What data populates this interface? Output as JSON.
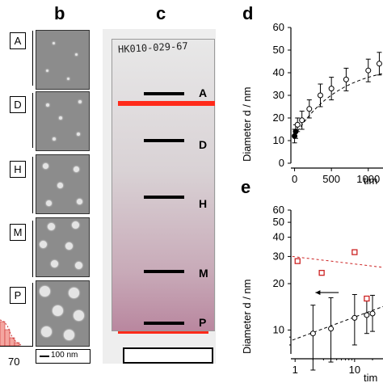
{
  "panel_labels": {
    "b": "b",
    "c": "c",
    "d": "d",
    "e": "e"
  },
  "samples": [
    "A",
    "D",
    "H",
    "M",
    "P"
  ],
  "left_axis_tick": "70",
  "scale_bar_label": "100 nm",
  "strip": {
    "handwriting": "HK010-029-67",
    "band_labels": [
      "A",
      "D",
      "H",
      "M",
      "P"
    ]
  },
  "colors": {
    "red_line": "#ff2a1a",
    "red_series": "#cc2222",
    "gradient_end": "#b07f96"
  },
  "chart_data": [
    {
      "type": "scatter",
      "panel": "d",
      "ylabel": "Diameter d / nm",
      "xlabel": "tim",
      "x_ticks": [
        "0",
        "500",
        "1000"
      ],
      "y_ticks": [
        "0",
        "10",
        "20",
        "30",
        "40",
        "50",
        "60"
      ],
      "xlim": [
        -50,
        1200
      ],
      "ylim": [
        0,
        60
      ],
      "series": [
        {
          "x": [
            0,
            15,
            40,
            100,
            200,
            350,
            500,
            700,
            1000,
            1150
          ],
          "y": [
            12,
            14,
            17,
            19,
            24,
            30,
            33,
            37,
            41,
            44
          ],
          "yerr": [
            3,
            3,
            3,
            4,
            4,
            5,
            5,
            5,
            5,
            5
          ]
        }
      ],
      "fit_line": true
    },
    {
      "type": "scatter",
      "panel": "e",
      "ylabel": "Diameter d / nm",
      "xlabel": "tim",
      "x_ticks": [
        "1",
        "10"
      ],
      "y_ticks": [
        "10",
        "20",
        "30",
        "40",
        "50",
        "60"
      ],
      "xscale": "log",
      "yscale": "log",
      "series": [
        {
          "x": [
            2,
            4,
            10,
            16,
            20
          ],
          "y": [
            9.5,
            10.2,
            12,
            12.5,
            12.8
          ],
          "yerr_low": [
            4,
            4,
            4,
            3,
            3
          ],
          "yerr_high": [
            5,
            6,
            5,
            4,
            4
          ]
        },
        {
          "x": [
            1.1,
            2.8,
            10,
            16
          ],
          "y": [
            28,
            23.5,
            32,
            16
          ]
        }
      ]
    }
  ]
}
